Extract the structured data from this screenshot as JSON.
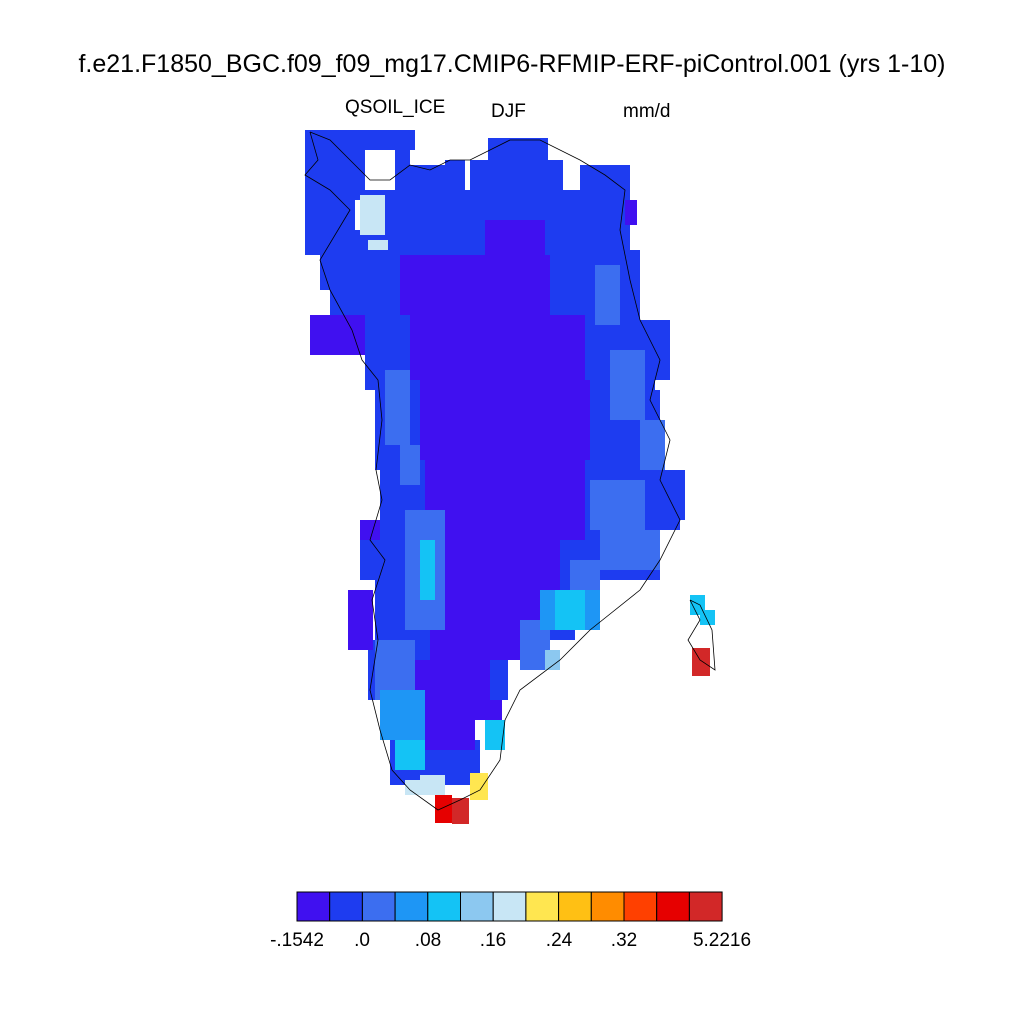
{
  "header": {
    "title": "f.e21.F1850_BGC.f09_f09_mg17.CMIP6-RFMIP-ERF-piControl.001 (yrs 1-10)",
    "variable": "QSOIL_ICE",
    "season": "DJF",
    "units": "mm/d"
  },
  "colorbar": {
    "colors": [
      "#4010f0",
      "#1e3cf0",
      "#3c6ef0",
      "#1e96f5",
      "#14c3f5",
      "#8cc8f0",
      "#c8e6f5",
      "#ffe650",
      "#ffc014",
      "#ff8c00",
      "#ff4000",
      "#e60000",
      "#d22828"
    ],
    "labels": [
      "-.1542",
      ".0",
      ".08",
      ".16",
      ".24",
      ".32",
      "5.2216"
    ]
  }
}
